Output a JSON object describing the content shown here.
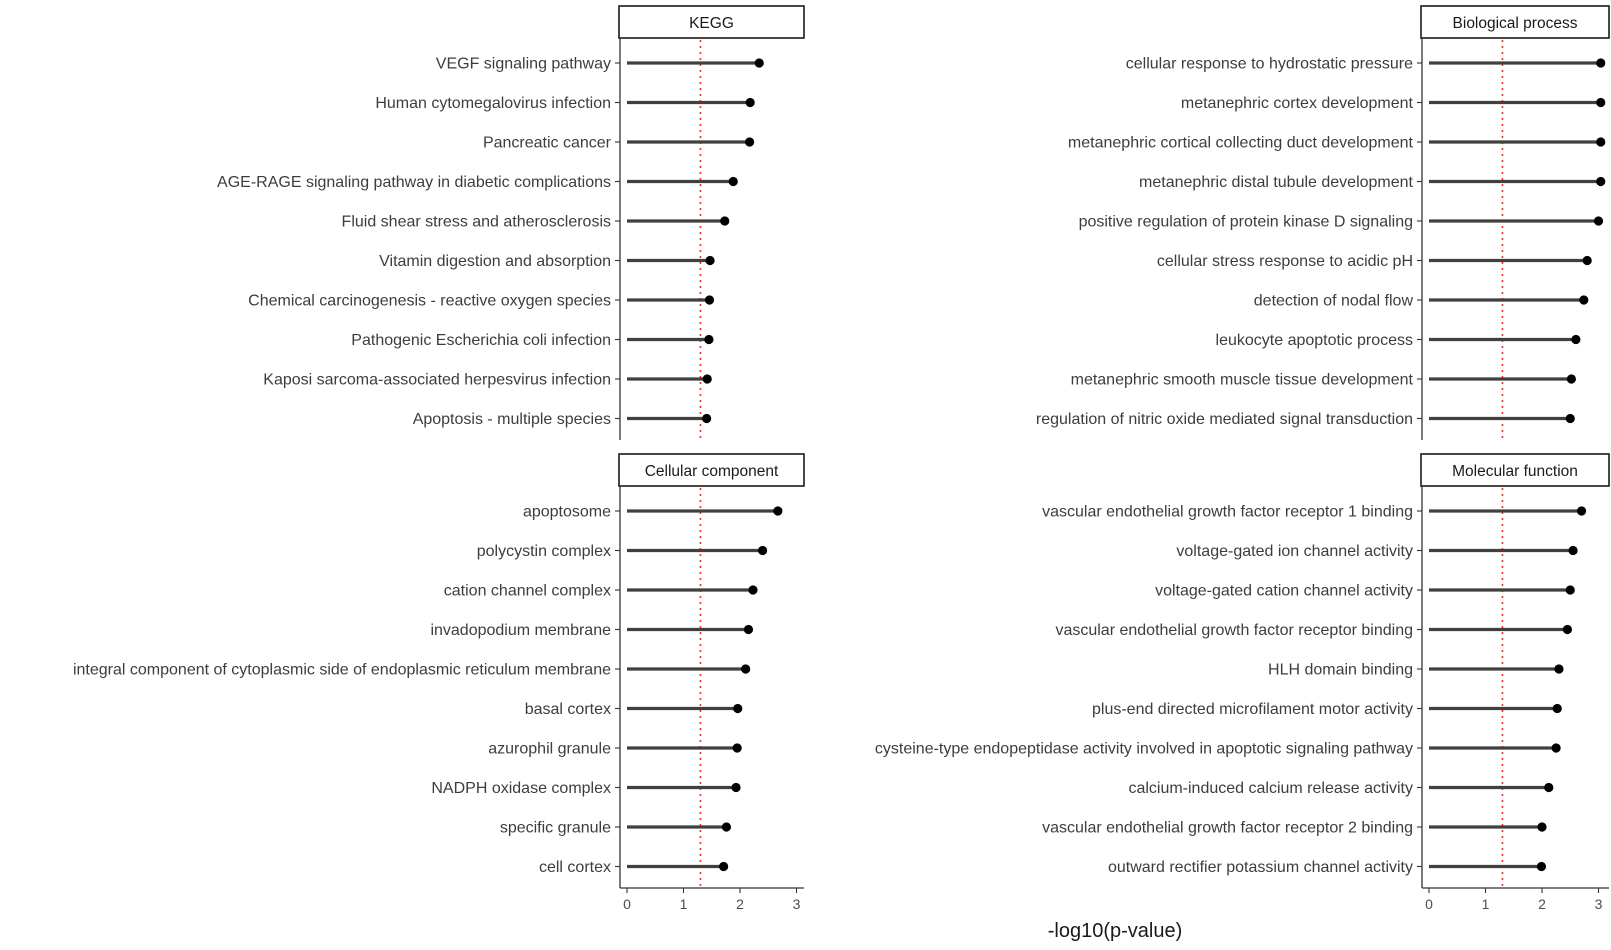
{
  "chart_data": {
    "type": "lollipop",
    "xlabel": "-log10(p-value)",
    "xlim": [
      0,
      3.1
    ],
    "xticks": [
      0,
      1,
      2,
      3
    ],
    "reference_line": {
      "value": 1.3,
      "style": "dotted",
      "color": "#e8332b"
    },
    "colors": {
      "stem": "#404040",
      "point": "#000000",
      "axis": "#333333"
    },
    "panels": [
      {
        "title": "KEGG",
        "categories": [
          "VEGF signaling pathway",
          "Human cytomegalovirus infection",
          "Pancreatic cancer",
          "AGE-RAGE signaling pathway in diabetic complications",
          "Fluid shear stress and atherosclerosis",
          "Vitamin digestion and absorption",
          "Chemical carcinogenesis - reactive oxygen species",
          "Pathogenic Escherichia coli infection",
          "Kaposi sarcoma-associated herpesvirus infection",
          "Apoptosis - multiple species"
        ],
        "values": [
          2.34,
          2.18,
          2.17,
          1.88,
          1.73,
          1.47,
          1.46,
          1.45,
          1.42,
          1.41
        ]
      },
      {
        "title": "Biological process",
        "categories": [
          "cellular response to hydrostatic pressure",
          "metanephric cortex development",
          "metanephric cortical collecting duct development",
          "metanephric distal tubule development",
          "positive regulation of protein kinase D signaling",
          "cellular stress response to acidic pH",
          "detection of nodal flow",
          "leukocyte apoptotic process",
          "metanephric smooth muscle tissue development",
          "regulation of nitric oxide mediated signal transduction"
        ],
        "values": [
          3.04,
          3.04,
          3.04,
          3.04,
          3.0,
          2.8,
          2.74,
          2.6,
          2.52,
          2.5
        ]
      },
      {
        "title": "Cellular component",
        "categories": [
          "apoptosome",
          "polycystin complex",
          "cation channel complex",
          "invadopodium membrane",
          "integral component of cytoplasmic side of endoplasmic reticulum membrane",
          "basal cortex",
          "azurophil granule",
          "NADPH oxidase complex",
          "specific granule",
          "cell cortex"
        ],
        "values": [
          2.67,
          2.4,
          2.23,
          2.15,
          2.1,
          1.96,
          1.95,
          1.93,
          1.76,
          1.71
        ]
      },
      {
        "title": "Molecular function",
        "categories": [
          "vascular endothelial growth factor receptor 1 binding",
          "voltage-gated ion channel activity",
          "voltage-gated cation channel activity",
          "vascular endothelial growth factor receptor binding",
          "HLH domain binding",
          "plus-end directed microfilament motor activity",
          "cysteine-type endopeptidase activity involved in apoptotic signaling pathway",
          "calcium-induced calcium release activity",
          "vascular endothelial growth factor receptor 2 binding",
          "outward rectifier potassium channel activity"
        ],
        "values": [
          2.7,
          2.55,
          2.5,
          2.45,
          2.3,
          2.27,
          2.25,
          2.12,
          2.0,
          1.99
        ]
      }
    ]
  }
}
